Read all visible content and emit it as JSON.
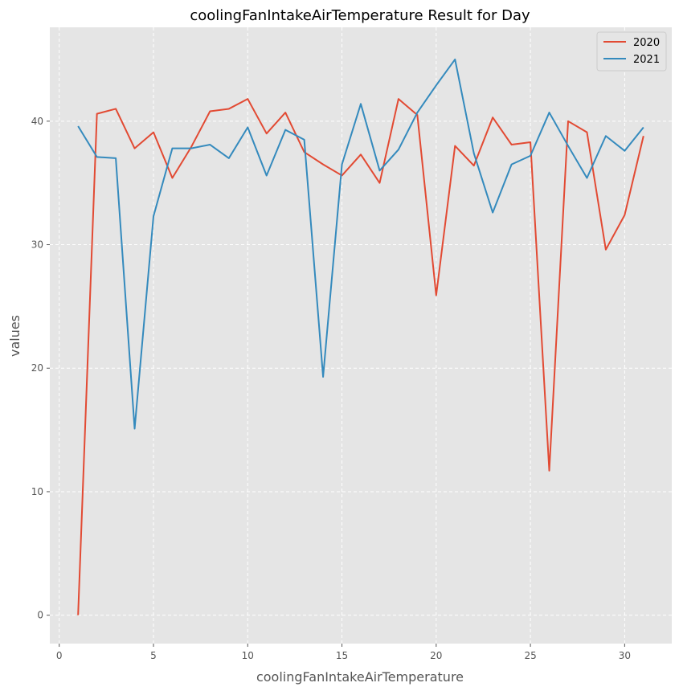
{
  "chart_data": {
    "type": "line",
    "title": "coolingFanIntakeAirTemperature Result for Day",
    "xlabel": "coolingFanIntakeAirTemperature",
    "ylabel": "values",
    "xlim": [
      -0.5,
      32.5
    ],
    "ylim": [
      -2.3,
      47.6
    ],
    "xticks": [
      0,
      5,
      10,
      15,
      20,
      25,
      30
    ],
    "yticks": [
      0,
      10,
      20,
      30,
      40
    ],
    "grid": true,
    "legend_position": "top-right",
    "x": [
      1,
      2,
      3,
      4,
      5,
      6,
      7,
      8,
      9,
      10,
      11,
      12,
      13,
      14,
      15,
      16,
      17,
      18,
      19,
      20,
      21,
      22,
      23,
      24,
      25,
      26,
      27,
      28,
      29,
      30,
      31
    ],
    "series": [
      {
        "name": "2020",
        "color": "#e24a33",
        "values": [
          0.0,
          40.6,
          41.0,
          37.8,
          39.1,
          35.4,
          37.9,
          40.8,
          41.0,
          41.8,
          39.0,
          40.7,
          37.5,
          36.5,
          35.6,
          37.3,
          35.0,
          41.8,
          40.5,
          25.9,
          38.0,
          36.4,
          40.3,
          38.1,
          38.3,
          11.7,
          40.0,
          39.1,
          29.6,
          32.4,
          38.8
        ]
      },
      {
        "name": "2021",
        "color": "#348abd",
        "values": [
          39.6,
          37.1,
          37.0,
          15.1,
          32.3,
          37.8,
          37.8,
          38.1,
          37.0,
          39.5,
          35.6,
          39.3,
          38.5,
          19.3,
          36.5,
          41.4,
          36.0,
          37.7,
          40.7,
          42.9,
          45.0,
          37.4,
          32.6,
          36.5,
          37.2,
          40.7,
          38.0,
          35.4,
          38.8,
          37.6,
          39.5
        ]
      }
    ]
  }
}
